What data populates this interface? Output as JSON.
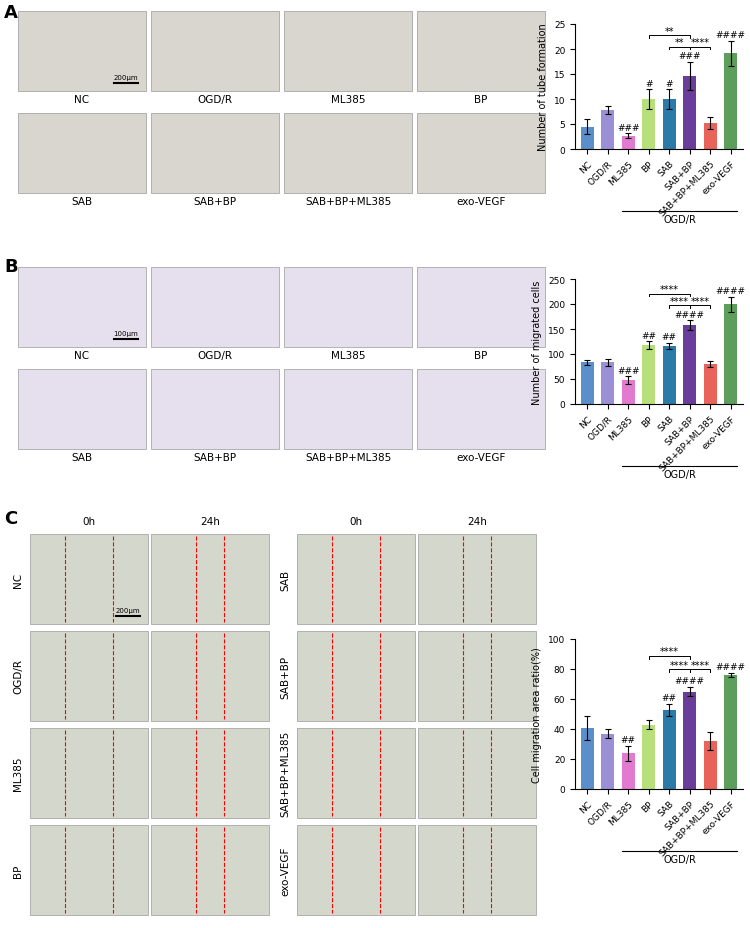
{
  "figure": {
    "panels": [
      {
        "label": "A",
        "images": {
          "labels": [
            "NC",
            "OGD/R",
            "ML385",
            "BP",
            "SAB",
            "SAB+BP",
            "SAB+BP+ML385",
            "exo-VEGF"
          ],
          "scale_bar": "200μm"
        }
      },
      {
        "label": "B",
        "images": {
          "labels": [
            "NC",
            "OGD/R",
            "ML385",
            "BP",
            "SAB",
            "SAB+BP",
            "SAB+BP+ML385",
            "exo-VEGF"
          ],
          "scale_bar": "100μm"
        }
      },
      {
        "label": "C",
        "images": {
          "labels": [
            "NC",
            "OGD/R",
            "ML385",
            "BP",
            "SAB",
            "SAB+BP",
            "SAB+BP+ML385",
            "exo-VEGF"
          ],
          "columns": [
            "0h",
            "24h"
          ],
          "scale_bar": "200μm"
        }
      }
    ]
  },
  "chart_data": [
    {
      "type": "bar",
      "y_label": "Number of tube formation",
      "categories": [
        "NC",
        "OGD/R",
        "ML385",
        "BP",
        "SAB",
        "SAB+BP",
        "SAB+BP+ML385",
        "exo-VEGF"
      ],
      "values": [
        4.5,
        7.8,
        2.7,
        10,
        10,
        14.7,
        5.2,
        19.2
      ],
      "errors": [
        1.5,
        0.8,
        0.5,
        2,
        2,
        2.8,
        1.2,
        2.5
      ],
      "colors": [
        "#5b8fc9",
        "#9b8fd6",
        "#e27bd0",
        "#b8e07a",
        "#2a7ba8",
        "#6a3d9a",
        "#e8635a",
        "#5d9e5c"
      ],
      "ylim": [
        0,
        25
      ],
      "yticks": [
        0,
        5,
        10,
        15,
        20,
        25
      ],
      "annotations": [
        {
          "category": "ML385",
          "text": "###"
        },
        {
          "category": "BP",
          "text": "#"
        },
        {
          "category": "SAB",
          "text": "#"
        },
        {
          "category": "SAB+BP",
          "text": "###"
        },
        {
          "category": "exo-VEGF",
          "text": "####"
        }
      ],
      "comparisons": [
        {
          "from": "SAB",
          "to": "SAB+BP",
          "text": "**"
        },
        {
          "from": "SAB+BP",
          "to": "SAB+BP+ML385",
          "text": "****"
        },
        {
          "from": "BP",
          "to": "SAB+BP",
          "text": "**"
        }
      ],
      "group_label": {
        "text": "OGD/R",
        "from": "ML385",
        "to": "exo-VEGF"
      }
    },
    {
      "type": "bar",
      "y_label": "Number of migrated cells",
      "categories": [
        "NC",
        "OGD/R",
        "ML385",
        "BP",
        "SAB",
        "SAB+BP",
        "SAB+BP+ML385",
        "exo-VEGF"
      ],
      "values": [
        84,
        84,
        48,
        118,
        117,
        158,
        81,
        200
      ],
      "errors": [
        5,
        7,
        8,
        8,
        6,
        10,
        6,
        15
      ],
      "colors": [
        "#5b8fc9",
        "#9b8fd6",
        "#e27bd0",
        "#b8e07a",
        "#2a7ba8",
        "#6a3d9a",
        "#e8635a",
        "#5d9e5c"
      ],
      "ylim": [
        0,
        250
      ],
      "yticks": [
        0,
        50,
        100,
        150,
        200,
        250
      ],
      "annotations": [
        {
          "category": "ML385",
          "text": "###"
        },
        {
          "category": "BP",
          "text": "##"
        },
        {
          "category": "SAB",
          "text": "##"
        },
        {
          "category": "SAB+BP",
          "text": "####"
        },
        {
          "category": "exo-VEGF",
          "text": "####"
        }
      ],
      "comparisons": [
        {
          "from": "SAB",
          "to": "SAB+BP",
          "text": "****"
        },
        {
          "from": "SAB+BP",
          "to": "SAB+BP+ML385",
          "text": "****"
        },
        {
          "from": "BP",
          "to": "SAB+BP",
          "text": "****"
        }
      ],
      "group_label": {
        "text": "OGD/R",
        "from": "ML385",
        "to": "exo-VEGF"
      }
    },
    {
      "type": "bar",
      "y_label": "Cell migration area ratio(%)",
      "categories": [
        "NC",
        "OGD/R",
        "ML385",
        "BP",
        "SAB",
        "SAB+BP",
        "SAB+BP+ML385",
        "exo-VEGF"
      ],
      "values": [
        41,
        37,
        24,
        43,
        53,
        65,
        32,
        76
      ],
      "errors": [
        8,
        3,
        5,
        3,
        4,
        3,
        6,
        1.5
      ],
      "colors": [
        "#5b8fc9",
        "#9b8fd6",
        "#e27bd0",
        "#b8e07a",
        "#2a7ba8",
        "#6a3d9a",
        "#e8635a",
        "#5d9e5c"
      ],
      "ylim": [
        0,
        100
      ],
      "yticks": [
        0,
        20,
        40,
        60,
        80,
        100
      ],
      "annotations": [
        {
          "category": "ML385",
          "text": "##"
        },
        {
          "category": "SAB",
          "text": "##"
        },
        {
          "category": "SAB+BP",
          "text": "####"
        },
        {
          "category": "exo-VEGF",
          "text": "####"
        }
      ],
      "comparisons": [
        {
          "from": "SAB",
          "to": "SAB+BP",
          "text": "****"
        },
        {
          "from": "SAB+BP",
          "to": "SAB+BP+ML385",
          "text": "****"
        },
        {
          "from": "BP",
          "to": "SAB+BP",
          "text": "****"
        }
      ],
      "group_label": {
        "text": "OGD/R",
        "from": "ML385",
        "to": "exo-VEGF"
      }
    }
  ]
}
